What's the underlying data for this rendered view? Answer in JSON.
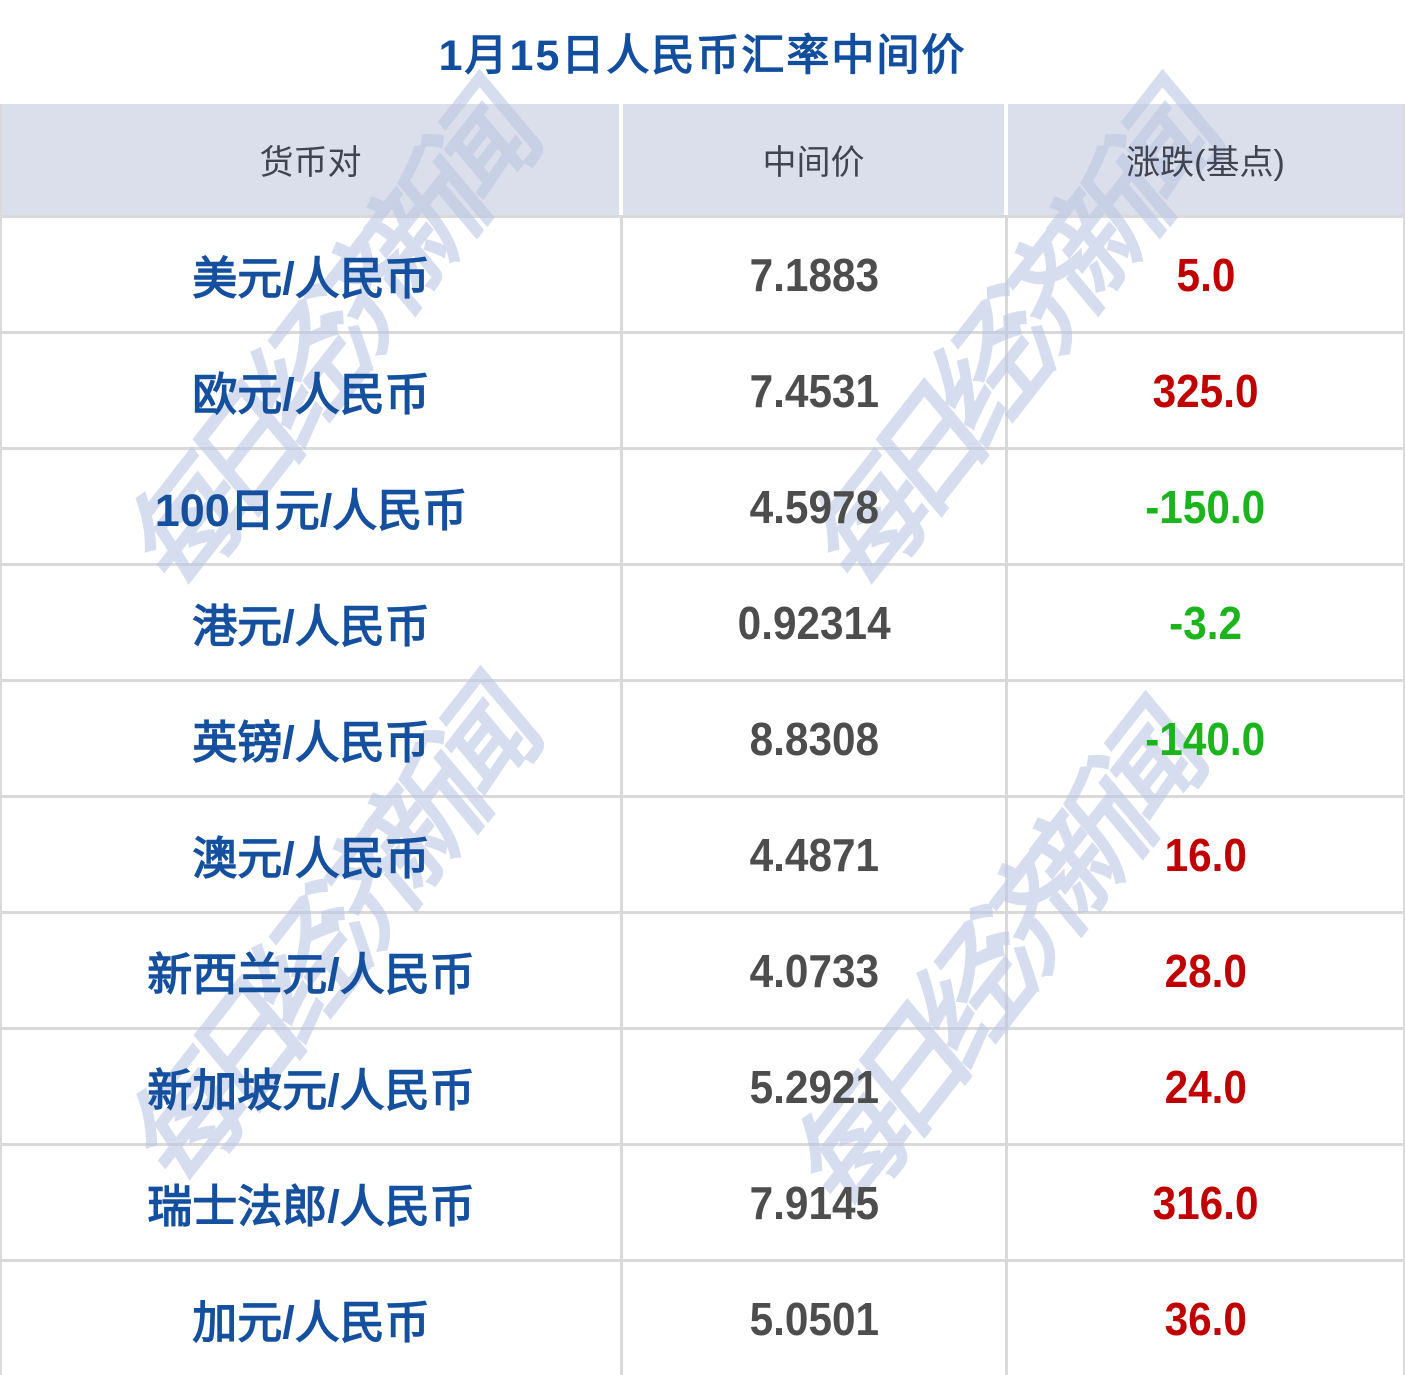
{
  "title": "1月15日人民币汇率中间价",
  "watermark": {
    "text": "每日经济新闻"
  },
  "colors": {
    "title_blue": "#114e9e",
    "pair_blue": "#15509e",
    "mid_gray": "#4d4d4d",
    "up_red": "#c00000",
    "down_green": "#1cb41c",
    "header_bg": "#dbdeeb",
    "grid_line": "#d9d9d9",
    "watermark_blue": "#bcc8e4"
  },
  "table": {
    "headers": [
      "货币对",
      "中间价",
      "涨跌(基点)"
    ],
    "rows": [
      {
        "pair": "美元/人民币",
        "mid": "7.1883",
        "change": "5.0",
        "dir": "up"
      },
      {
        "pair": "欧元/人民币",
        "mid": "7.4531",
        "change": "325.0",
        "dir": "up"
      },
      {
        "pair": "100日元/人民币",
        "mid": "4.5978",
        "change": "-150.0",
        "dir": "down"
      },
      {
        "pair": "港元/人民币",
        "mid": "0.92314",
        "change": "-3.2",
        "dir": "down"
      },
      {
        "pair": "英镑/人民币",
        "mid": "8.8308",
        "change": "-140.0",
        "dir": "down"
      },
      {
        "pair": "澳元/人民币",
        "mid": "4.4871",
        "change": "16.0",
        "dir": "up"
      },
      {
        "pair": "新西兰元/人民币",
        "mid": "4.0733",
        "change": "28.0",
        "dir": "up"
      },
      {
        "pair": "新加坡元/人民币",
        "mid": "5.2921",
        "change": "24.0",
        "dir": "up"
      },
      {
        "pair": "瑞士法郎/人民币",
        "mid": "7.9145",
        "change": "316.0",
        "dir": "up"
      },
      {
        "pair": "加元/人民币",
        "mid": "5.0501",
        "change": "36.0",
        "dir": "up"
      }
    ]
  }
}
